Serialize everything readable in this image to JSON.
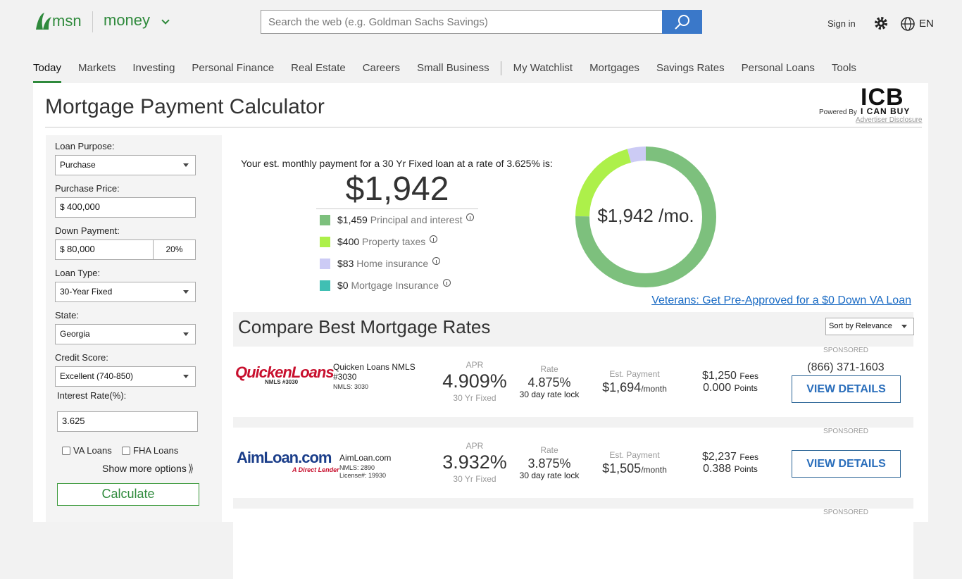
{
  "header": {
    "logo": "msn",
    "section": "money",
    "search_placeholder": "Search the web (e.g. Goldman Sachs Savings)",
    "sign_in": "Sign in",
    "language": "EN"
  },
  "nav": {
    "primary": [
      "Today",
      "Markets",
      "Investing",
      "Personal Finance",
      "Real Estate",
      "Careers",
      "Small Business"
    ],
    "secondary": [
      "My Watchlist",
      "Mortgages",
      "Savings Rates",
      "Personal Loans",
      "Tools"
    ]
  },
  "calculator": {
    "title": "Mortgage Payment Calculator",
    "powered_by": "Powered By",
    "brand": "ICB",
    "brand_sub": "I CAN BUY",
    "disclosure": "Advertiser Disclosure"
  },
  "form": {
    "fields": [
      {
        "label": "Loan Purpose:",
        "value": "Purchase",
        "kind": "select"
      },
      {
        "label": "Purchase Price:",
        "prefix": "$",
        "value": "400,000",
        "kind": "input"
      },
      {
        "label": "Down Payment:",
        "prefix": "$",
        "value": "80,000",
        "percent": "20%",
        "kind": "input"
      },
      {
        "label": "Loan Type:",
        "value": "30-Year Fixed",
        "kind": "select"
      },
      {
        "label": "State:",
        "value": "Georgia",
        "kind": "select"
      },
      {
        "label": "Credit Score:",
        "value": "Excellent (740-850)",
        "kind": "select"
      },
      {
        "label": "Interest Rate(%):",
        "value": "3.625",
        "kind": "input"
      }
    ],
    "checkboxes": [
      "VA Loans",
      "FHA Loans"
    ],
    "more_options": "Show more options",
    "more_icon": "⟫",
    "button": "Calculate"
  },
  "summary": {
    "intro": "Your est. monthly payment for a 30 Yr Fixed loan at a rate of 3.625% is:",
    "total": "$1,942",
    "donut_label": "$1,942 /mo.",
    "breakdown": [
      {
        "amount": "$1,459",
        "value": 1459,
        "name": "Principal and interest",
        "color": "#7dc07d"
      },
      {
        "amount": "$400",
        "value": 400,
        "name": "Property taxes",
        "color": "#adf04a"
      },
      {
        "amount": "$83",
        "value": 83,
        "name": "Home insurance",
        "color": "#cccbf5"
      },
      {
        "amount": "$0",
        "value": 0,
        "name": "Mortgage Insurance",
        "color": "#40bfb3"
      }
    ],
    "va_link": "Veterans: Get Pre-Approved for a $0 Down VA Loan"
  },
  "compare": {
    "title": "Compare Best Mortgage Rates",
    "sort": "Sort by Relevance",
    "offers": [
      {
        "sponsored": "SPONSORED",
        "logo": "QuickenLoans",
        "logo_sub": "NMLS #3030",
        "name": "Quicken Loans NMLS #3030",
        "details": [
          "NMLS: 3030"
        ],
        "apr_label": "APR",
        "apr": "4.909%",
        "term": "30 Yr Fixed",
        "rate_label": "Rate",
        "rate": "4.875%",
        "lock": "30 day rate lock",
        "payment_label": "Est. Payment",
        "payment": "$1,694",
        "per": "/month",
        "fees": "$1,250",
        "fees_label": "Fees",
        "points": "0.000",
        "points_label": "Points",
        "phone": "(866) 371-1603",
        "button": "VIEW DETAILS"
      },
      {
        "sponsored": "SPONSORED",
        "logo": "AimLoan.com",
        "logo_sub": "A Direct Lender",
        "name": "AimLoan.com",
        "details": [
          "NMLS: 2890",
          "License#: 19930"
        ],
        "apr_label": "APR",
        "apr": "3.932%",
        "term": "30 Yr Fixed",
        "rate_label": "Rate",
        "rate": "3.875%",
        "lock": "30 day rate lock",
        "payment_label": "Est. Payment",
        "payment": "$1,505",
        "per": "/month",
        "fees": "$2,237",
        "fees_label": "Fees",
        "points": "0.388",
        "points_label": "Points",
        "button": "VIEW DETAILS"
      },
      {
        "sponsored": "SPONSORED"
      }
    ]
  }
}
